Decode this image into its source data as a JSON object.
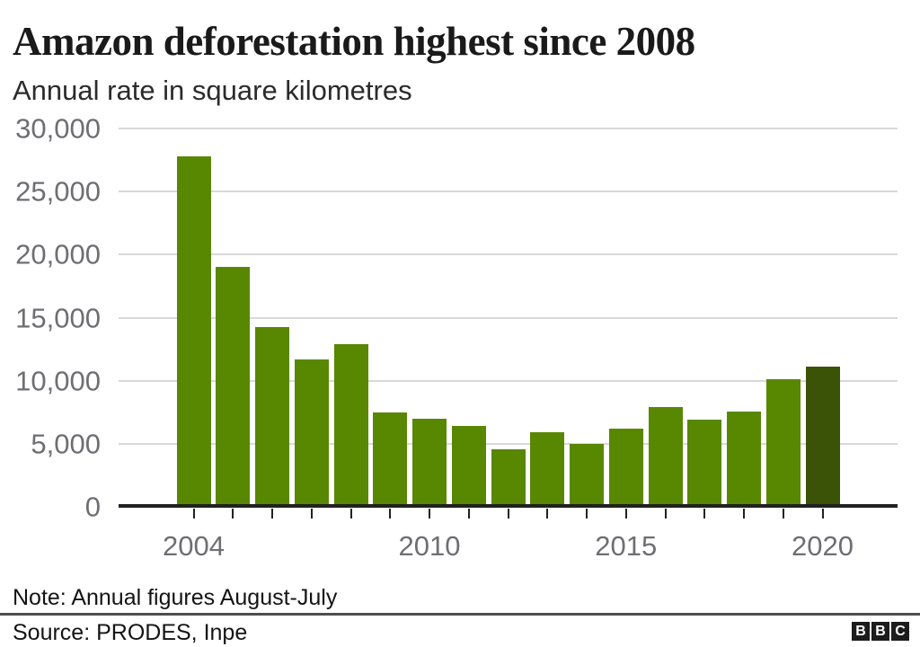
{
  "chart_data": {
    "type": "bar",
    "title": "Amazon deforestation highest since 2008",
    "subtitle": "Annual rate in square kilometres",
    "categories": [
      "2004",
      "2005",
      "2006",
      "2007",
      "2008",
      "2009",
      "2010",
      "2011",
      "2012",
      "2013",
      "2014",
      "2015",
      "2016",
      "2017",
      "2018",
      "2019",
      "2020"
    ],
    "values": [
      27772,
      19014,
      14286,
      11651,
      12911,
      7464,
      7000,
      6418,
      4571,
      5891,
      5012,
      6207,
      7893,
      6947,
      7536,
      10129,
      11088
    ],
    "highlight_index": 16,
    "xlabel": "",
    "ylabel": "",
    "ylim": [
      0,
      30000
    ],
    "grid": "horizontal",
    "legend": "none",
    "yticks": [
      {
        "value": 0,
        "label": "0"
      },
      {
        "value": 5000,
        "label": "5,000"
      },
      {
        "value": 10000,
        "label": "10,000"
      },
      {
        "value": 15000,
        "label": "15,000"
      },
      {
        "value": 20000,
        "label": "20,000"
      },
      {
        "value": 25000,
        "label": "25,000"
      },
      {
        "value": 30000,
        "label": "30,000"
      }
    ],
    "xticks": [
      {
        "index": 0,
        "label": "2004"
      },
      {
        "index": 6,
        "label": "2010"
      },
      {
        "index": 11,
        "label": "2015"
      },
      {
        "index": 16,
        "label": "2020"
      }
    ],
    "colors": {
      "bar": "#588701",
      "bar_highlight": "#3a5306",
      "gridline": "#d9d9d9",
      "axis": "#212121",
      "axis_label": "#6e6e73"
    }
  },
  "footer": {
    "note": "Note: Annual figures August-July",
    "source": "Source: PRODES, Inpe",
    "logo_letters": [
      "B",
      "B",
      "C"
    ]
  }
}
